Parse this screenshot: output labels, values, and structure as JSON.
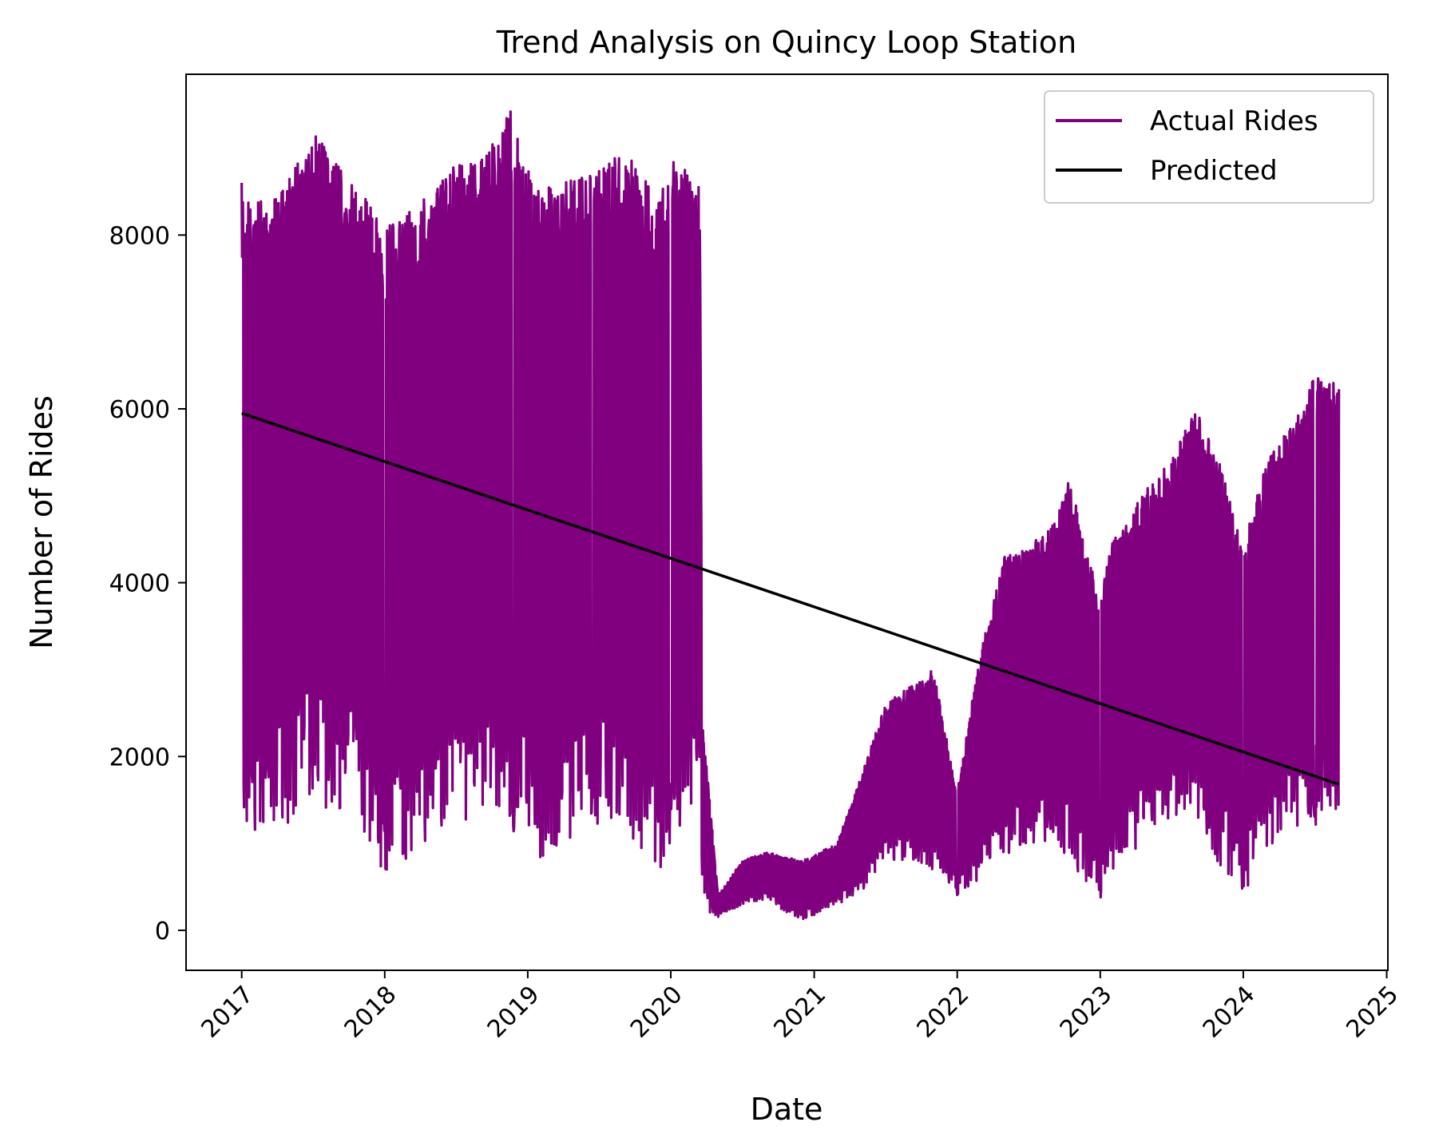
{
  "chart_data": {
    "type": "line",
    "title": "Trend Analysis on Quincy Loop Station",
    "xlabel": "Date",
    "ylabel": "Number of Rides",
    "xlim": [
      "2016-08-12",
      "2025-01-04"
    ],
    "ylim": [
      -460,
      9850
    ],
    "x_ticks": [
      "2017",
      "2018",
      "2019",
      "2020",
      "2021",
      "2022",
      "2023",
      "2024",
      "2025"
    ],
    "y_ticks": [
      0,
      2000,
      4000,
      6000,
      8000
    ],
    "grid": false,
    "legend_position": "top-right",
    "series": [
      {
        "name": "Actual Rides",
        "color": "#800080",
        "style": "dense daily series",
        "envelope": {
          "dates": [
            "2017-01-01",
            "2017-01-20",
            "2017-04-15",
            "2017-07-01",
            "2017-09-15",
            "2017-12-31",
            "2018-03-15",
            "2018-06-15",
            "2018-09-15",
            "2018-11-25",
            "2019-01-15",
            "2019-04-01",
            "2019-06-15",
            "2019-09-01",
            "2019-12-01",
            "2019-12-31",
            "2020-03-15",
            "2020-03-22",
            "2020-05-01",
            "2020-07-01",
            "2020-09-01",
            "2020-12-01",
            "2021-03-01",
            "2021-05-01",
            "2021-07-01",
            "2021-09-01",
            "2021-11-01",
            "2021-12-31",
            "2022-03-01",
            "2022-05-01",
            "2022-07-01",
            "2022-09-01",
            "2022-10-15",
            "2022-12-31",
            "2023-02-01",
            "2023-05-01",
            "2023-07-01",
            "2023-09-01",
            "2023-11-01",
            "2023-12-31",
            "2024-03-01",
            "2024-05-01",
            "2024-07-01",
            "2024-09-01"
          ],
          "high": [
            8600,
            8400,
            8500,
            9200,
            8800,
            8100,
            8300,
            8800,
            8900,
            9500,
            8500,
            8600,
            8700,
            9000,
            8400,
            8900,
            8600,
            2400,
            400,
            800,
            900,
            800,
            1000,
            1800,
            2600,
            2800,
            3000,
            1600,
            3200,
            4300,
            4400,
            4700,
            5200,
            3800,
            4500,
            5100,
            5400,
            6000,
            5400,
            4400,
            5400,
            5800,
            6400,
            6300
          ],
          "low": [
            1000,
            900,
            1200,
            1400,
            1400,
            600,
            900,
            1200,
            1300,
            1100,
            700,
            1000,
            1200,
            1200,
            600,
            1000,
            1100,
            200,
            150,
            300,
            350,
            100,
            300,
            400,
            800,
            800,
            700,
            400,
            600,
            800,
            1000,
            1000,
            800,
            350,
            700,
            1000,
            1200,
            1300,
            700,
            400,
            900,
            1200,
            1200,
            1400
          ],
          "dip_dates": [
            "2017-12-31",
            "2018-11-25",
            "2019-06-15",
            "2019-12-31",
            "2021-12-31",
            "2022-12-31",
            "2023-12-31",
            "2024-07-01"
          ]
        }
      },
      {
        "name": "Predicted",
        "color": "#000000",
        "x": [
          "2017-01-01",
          "2024-09-01"
        ],
        "y": [
          5950,
          1680
        ]
      }
    ]
  }
}
